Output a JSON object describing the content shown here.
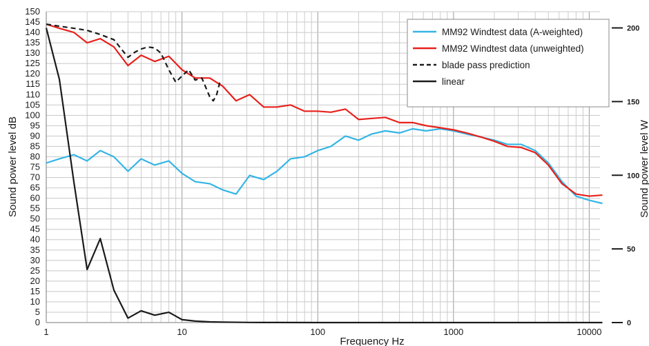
{
  "chart_data": {
    "type": "line",
    "xlabel": "Frequency  Hz",
    "ylabel": "Sound power level dB",
    "y2label": "Sound power level W",
    "xscale": "log",
    "xlim": [
      1,
      12000
    ],
    "ylim": [
      0,
      150
    ],
    "y2lim": [
      0,
      211
    ],
    "grid": true,
    "legend_position": "top-right",
    "x_tick_labels": [
      "1",
      "10",
      "100",
      "1000",
      "10000"
    ],
    "y_ticks": [
      0,
      5,
      10,
      15,
      20,
      25,
      30,
      35,
      40,
      45,
      50,
      55,
      60,
      65,
      70,
      75,
      80,
      85,
      90,
      95,
      100,
      105,
      110,
      115,
      120,
      125,
      130,
      135,
      140,
      145,
      150
    ],
    "y2_ticks": [
      0,
      50,
      100,
      150,
      200
    ],
    "series": [
      {
        "name": "MM92 Windtest data (A-weighted)",
        "color": "#33b5e5",
        "dash": "solid",
        "axis": "left",
        "x": [
          1,
          1.25,
          1.6,
          2,
          2.5,
          3.15,
          4,
          5,
          6.3,
          8,
          10,
          12.5,
          16,
          20,
          25,
          31.5,
          40,
          50,
          63,
          80,
          100,
          125,
          160,
          200,
          250,
          315,
          400,
          500,
          630,
          800,
          1000,
          1250,
          1600,
          2000,
          2500,
          3150,
          4000,
          5000,
          6300,
          8000,
          10000,
          12500
        ],
        "y": [
          77,
          79,
          81,
          78,
          83,
          80,
          73,
          79,
          76,
          78,
          72,
          68,
          67,
          64,
          62,
          71,
          69,
          73,
          79,
          80,
          83,
          85,
          90,
          88,
          91,
          92.5,
          91.5,
          93.5,
          92.5,
          93.5,
          92.5,
          91,
          89.5,
          88,
          86,
          86,
          83,
          77,
          68,
          61,
          59,
          57.5
        ]
      },
      {
        "name": "MM92 Windtest data (unweighted)",
        "color": "#e8201a",
        "dash": "solid",
        "axis": "left",
        "x": [
          1,
          1.25,
          1.6,
          2,
          2.5,
          3.15,
          4,
          5,
          6.3,
          8,
          10,
          12.5,
          16,
          20,
          25,
          31.5,
          40,
          50,
          63,
          80,
          100,
          125,
          160,
          200,
          250,
          315,
          400,
          500,
          630,
          800,
          1000,
          1250,
          1600,
          2000,
          2500,
          3150,
          4000,
          5000,
          6300,
          8000,
          10000,
          12500
        ],
        "y": [
          144,
          142,
          140,
          135,
          137,
          133,
          124,
          129,
          126,
          128.5,
          122,
          118,
          118,
          114,
          107,
          110,
          104,
          104,
          105,
          102,
          102,
          101.5,
          103,
          98,
          98.5,
          99,
          96.5,
          96.5,
          95,
          94,
          93,
          91.5,
          89.5,
          87.5,
          85,
          84.5,
          82,
          76,
          67,
          62,
          61,
          61.5
        ]
      },
      {
        "name": "blade pass prediction",
        "color": "#1a1a1a",
        "dash": "dashed",
        "axis": "left",
        "x": [
          1,
          1.25,
          1.6,
          2,
          2.5,
          3.15,
          4,
          4.5,
          5,
          5.6,
          6.3,
          7,
          8,
          9,
          10,
          11.2,
          12.5,
          14,
          16,
          17,
          18,
          19
        ],
        "y": [
          144,
          143,
          142,
          141,
          139,
          136.5,
          128,
          130.5,
          132,
          133,
          132.5,
          130,
          122,
          116,
          119,
          122,
          117,
          118,
          109,
          107,
          110,
          116
        ]
      },
      {
        "name": "linear",
        "color": "#1a1a1a",
        "dash": "solid",
        "axis": "right",
        "x": [
          1,
          1.25,
          1.6,
          2,
          2.5,
          3.15,
          4,
          5,
          6.3,
          8,
          10,
          12.5,
          16,
          20,
          25,
          31.5,
          50,
          100,
          1000,
          10000,
          12500
        ],
        "y": [
          200,
          165,
          95,
          36,
          57,
          22,
          3,
          8,
          5,
          7,
          2,
          1,
          0.5,
          0.3,
          0.2,
          0.1,
          0.05,
          0,
          0,
          0,
          0
        ]
      }
    ]
  }
}
